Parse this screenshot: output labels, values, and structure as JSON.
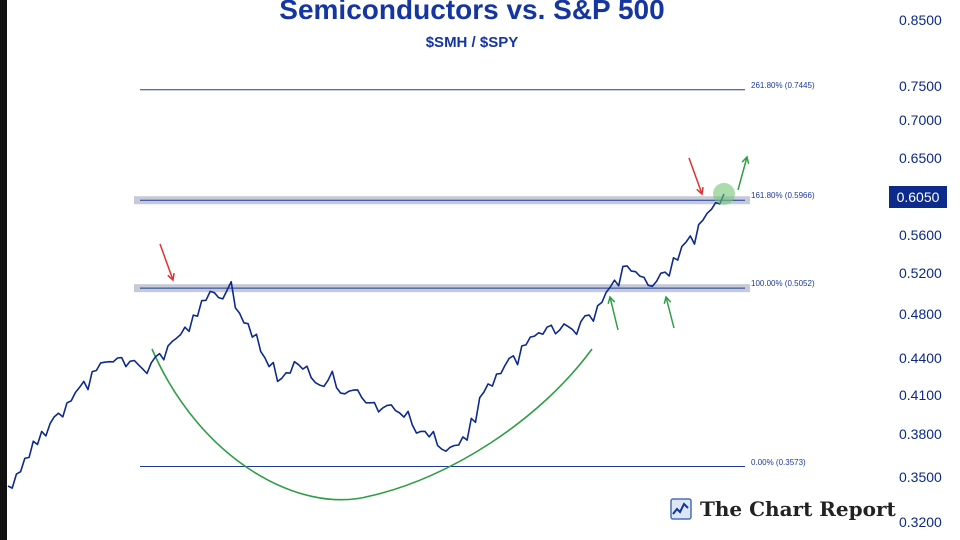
{
  "chart_data": {
    "type": "line",
    "title": "Semiconductors vs. S&P 500",
    "subtitle": "$SMH / $SPY",
    "y_axis": {
      "ticks": [
        "0.8500",
        "0.7500",
        "0.7000",
        "0.6500",
        "0.5600",
        "0.5200",
        "0.4800",
        "0.4400",
        "0.4100",
        "0.3800",
        "0.3500",
        "0.3200"
      ],
      "scale": "log",
      "position": "right",
      "range": [
        0.32,
        0.85
      ]
    },
    "current_price_label": "0.6050",
    "series": [
      {
        "color": "#0d2a8c",
        "y": [
          0.344,
          0.352,
          0.363,
          0.375,
          0.382,
          0.388,
          0.396,
          0.404,
          0.412,
          0.421,
          0.429,
          0.436,
          0.437,
          0.44,
          0.433,
          0.438,
          0.431,
          0.436,
          0.444,
          0.451,
          0.458,
          0.468,
          0.479,
          0.493,
          0.502,
          0.496,
          0.503,
          0.486,
          0.472,
          0.459,
          0.446,
          0.433,
          0.421,
          0.428,
          0.437,
          0.431,
          0.424,
          0.418,
          0.422,
          0.416,
          0.411,
          0.414,
          0.408,
          0.404,
          0.397,
          0.402,
          0.398,
          0.393,
          0.387,
          0.382,
          0.378,
          0.372,
          0.368,
          0.372,
          0.378,
          0.392,
          0.408,
          0.419,
          0.427,
          0.434,
          0.442,
          0.451,
          0.459,
          0.463,
          0.468,
          0.462,
          0.471,
          0.466,
          0.473,
          0.479,
          0.488,
          0.501,
          0.513,
          0.527,
          0.522,
          0.517,
          0.508,
          0.512,
          0.521,
          0.536,
          0.548,
          0.559,
          0.571,
          0.583,
          0.594,
          0.604
        ]
      }
    ],
    "fibonacci_levels": [
      {
        "label": "261.80% (0.7445)",
        "value": 0.7445
      },
      {
        "label": "161.80% (0.5966)",
        "value": 0.5966
      },
      {
        "label": "100.00% (0.5052)",
        "value": 0.5052
      },
      {
        "label": "0.00% (0.3573)",
        "value": 0.3573
      }
    ],
    "highlighted_levels": [
      0.5966,
      0.5052
    ],
    "annotations": [
      {
        "type": "arrow-down",
        "color": "#e03131",
        "near": "first peak"
      },
      {
        "type": "arrow-down",
        "color": "#e03131",
        "near": "latest peak"
      },
      {
        "type": "arrow-up",
        "color": "#2f9e44",
        "near": "support test 1"
      },
      {
        "type": "arrow-up",
        "color": "#2f9e44",
        "near": "support test 2"
      },
      {
        "type": "arrow-up",
        "color": "#2f9e44",
        "near": "breakout"
      },
      {
        "type": "cup-curve",
        "color": "#2f9e44"
      },
      {
        "type": "circle-marker",
        "color": "#74c476",
        "near": "latest price"
      }
    ],
    "grid": false,
    "legend": "none"
  },
  "brand": {
    "name": "The Chart Report"
  }
}
